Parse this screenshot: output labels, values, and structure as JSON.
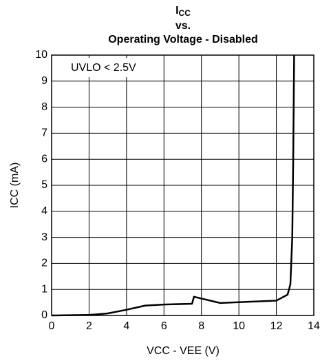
{
  "chart_data": {
    "type": "line",
    "title": [
      "I",
      "CC",
      "vs.",
      "Operating Voltage - Disabled"
    ],
    "annotation": "UVLO < 2.5V",
    "xlabel": "VCC - VEE (V)",
    "ylabel": "ICC (mA)",
    "series": [
      {
        "name": "ICC",
        "color": "#000000",
        "x": [
          0,
          2,
          3,
          4,
          5,
          6,
          7.5,
          7.6,
          9,
          12,
          12.6,
          12.75,
          12.85,
          12.9,
          12.95
        ],
        "values": [
          0,
          0.02,
          0.08,
          0.22,
          0.38,
          0.42,
          0.45,
          0.72,
          0.48,
          0.57,
          0.8,
          1.2,
          3,
          6,
          10
        ]
      }
    ],
    "xlim": [
      0,
      14
    ],
    "xticks": [
      0,
      2,
      4,
      6,
      8,
      10,
      12,
      14
    ],
    "ylim": [
      0,
      10
    ],
    "yticks": [
      0,
      1,
      2,
      3,
      4,
      5,
      6,
      7,
      8,
      9,
      10
    ],
    "grid": true
  }
}
